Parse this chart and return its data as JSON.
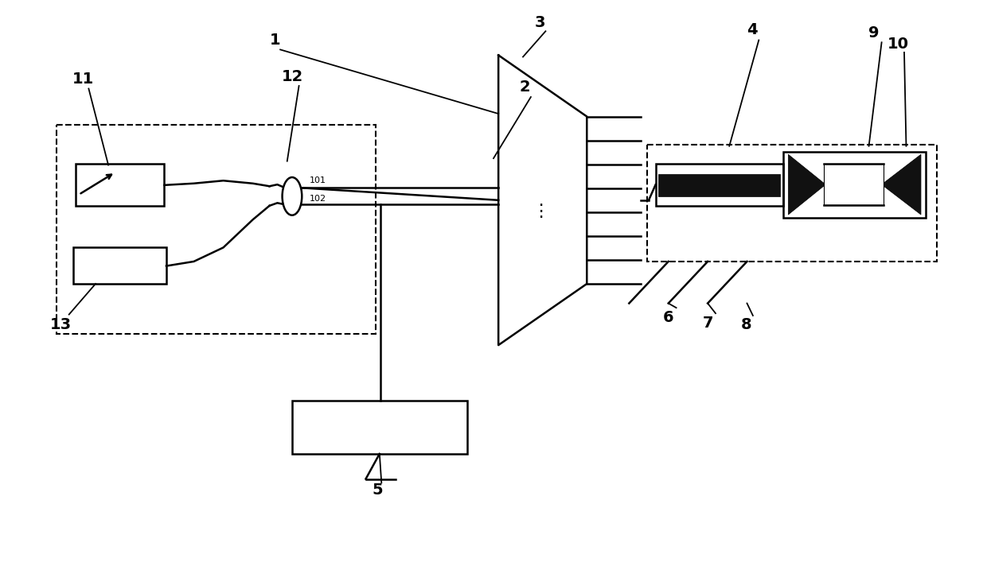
{
  "bg_color": "#ffffff",
  "line_color": "#000000",
  "fig_width": 12.4,
  "fig_height": 7.07
}
